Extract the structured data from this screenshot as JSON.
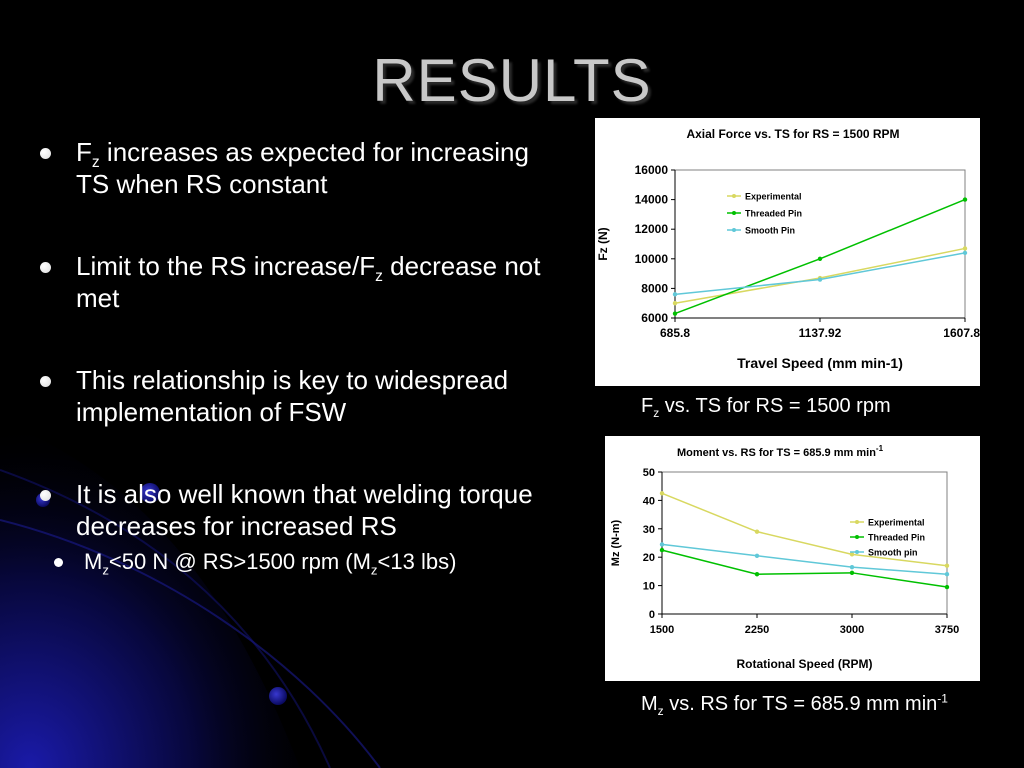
{
  "title": "RESULTS",
  "bullets": [
    {
      "pre": "F",
      "sub": "z",
      "post": " increases as expected for increasing TS when RS constant"
    },
    {
      "pre": "Limit to the RS increase/F",
      "sub": "z",
      "post": " decrease not met"
    },
    {
      "pre": "This relationship is key to widespread implementation of FSW",
      "sub": "",
      "post": ""
    },
    {
      "pre": "It is also well known that welding torque decreases for increased RS",
      "sub": "",
      "post": ""
    }
  ],
  "sub_bullet": {
    "a": "M",
    "a_sub": "z",
    "b": "<50 N @ RS>1500 rpm (M",
    "b_sub": "z",
    "c": "<13 lbs)"
  },
  "caption1": {
    "a": "F",
    "a_sub": "z",
    "b": " vs. TS for RS = 1500 rpm"
  },
  "caption2": {
    "a": "M",
    "a_sub": "z",
    "b": " vs. RS for TS = 685.9 mm min",
    "b_sup": "-1"
  },
  "chart_data": [
    {
      "type": "line",
      "title": "Axial Force vs. TS for RS = 1500 RPM",
      "xlabel": "Travel Speed (mm min-1)",
      "ylabel": "Fz (N)",
      "categories": [
        "685.8",
        "1137.92",
        "1607.82"
      ],
      "ylim": [
        6000,
        16000
      ],
      "yticks": [
        6000,
        8000,
        10000,
        12000,
        14000,
        16000
      ],
      "legend_position": "top-left",
      "series": [
        {
          "name": "Experimental",
          "color": "#d8d860",
          "values": [
            7000,
            8700,
            10700
          ]
        },
        {
          "name": "Threaded Pin",
          "color": "#00c000",
          "values": [
            6300,
            10000,
            14000
          ]
        },
        {
          "name": "Smooth Pin",
          "color": "#60c8d8",
          "values": [
            7600,
            8600,
            10400
          ]
        }
      ]
    },
    {
      "type": "line",
      "title": "Moment vs. RS for TS = 685.9 mm min",
      "title_sup": "-1",
      "xlabel": "Rotational Speed (RPM)",
      "ylabel": "Mz (N-m)",
      "categories": [
        "1500",
        "2250",
        "3000",
        "3750"
      ],
      "ylim": [
        0,
        50
      ],
      "yticks": [
        0,
        10,
        20,
        30,
        40,
        50
      ],
      "legend_position": "top-right",
      "series": [
        {
          "name": "Experimental",
          "color": "#d8d860",
          "values": [
            42.5,
            29,
            21,
            17
          ]
        },
        {
          "name": "Threaded Pin",
          "color": "#00c000",
          "values": [
            22.5,
            14,
            14.5,
            9.5
          ]
        },
        {
          "name": "Smooth pin",
          "color": "#60c8d8",
          "values": [
            24.5,
            20.5,
            16.5,
            14
          ]
        }
      ]
    }
  ]
}
